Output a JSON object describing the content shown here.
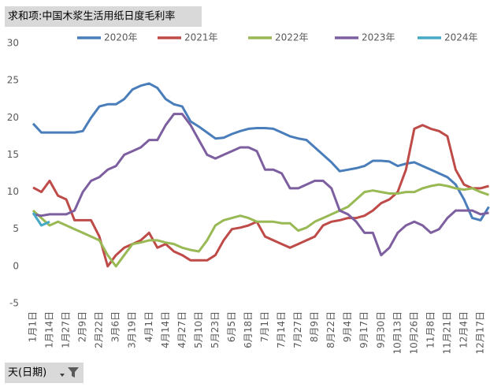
{
  "chart_data": {
    "type": "line",
    "title": "求和项:中国木浆生活用纸日度毛利率",
    "x_axis_button": "天(日期)",
    "legend": "top",
    "grid": false,
    "categories": [
      "1月1日",
      null,
      "1月14日",
      null,
      "1月27日",
      null,
      "2月9日",
      null,
      "2月22日",
      null,
      "3月6日",
      null,
      "3月19日",
      null,
      "4月1日",
      null,
      "4月14日",
      null,
      "4月27日",
      null,
      "5月10日",
      null,
      "5月23日",
      null,
      "6月5日",
      null,
      "6月18日",
      null,
      "7月1日",
      null,
      "7月14日",
      null,
      "7月27日",
      null,
      "8月9日",
      null,
      "8月22日",
      null,
      "9月4日",
      null,
      "9月17日",
      null,
      "9月30日",
      null,
      "10月13日",
      null,
      "10月26日",
      null,
      "11月8日",
      null,
      "11月21日",
      null,
      "12月4日",
      null,
      "12月17日",
      null
    ],
    "ylim": [
      -5,
      30
    ],
    "yticks": [
      -5,
      0,
      5,
      10,
      15,
      20,
      25,
      30
    ],
    "series": [
      {
        "name": "2020年",
        "color": "#4a7ebb",
        "values": [
          19.2,
          18.0,
          18,
          18,
          18,
          18,
          18.2,
          20,
          21.5,
          21.8,
          21.8,
          22.5,
          23.8,
          24.3,
          24.6,
          24,
          22.5,
          21.8,
          21.5,
          19.5,
          18.8,
          18,
          17.2,
          17.3,
          17.8,
          18.2,
          18.5,
          18.6,
          18.6,
          18.5,
          18,
          17.5,
          17.2,
          17,
          16,
          15,
          14,
          12.8,
          13,
          13.2,
          13.5,
          14.2,
          14.2,
          14.1,
          13.5,
          13.8,
          14,
          13.5,
          13,
          12.5,
          12,
          11,
          9,
          6.5,
          6.2,
          8
        ]
      },
      {
        "name": "2021年",
        "color": "#be4b48",
        "values": [
          10.6,
          10,
          11.5,
          9.5,
          9,
          6.2,
          6.2,
          6.2,
          4,
          0,
          1.5,
          2.5,
          3,
          3.5,
          4.5,
          2.5,
          3,
          2,
          1.5,
          0.8,
          0.8,
          0.8,
          1.5,
          3.5,
          5,
          5.2,
          5.5,
          6,
          4,
          3.5,
          3,
          2.5,
          3,
          3.5,
          4,
          5.5,
          6,
          6.2,
          6.5,
          6.5,
          6.8,
          7.5,
          8.5,
          9,
          10,
          13,
          18.5,
          19,
          18.5,
          18.2,
          17.5,
          13,
          11,
          10.5,
          10.5,
          10.8
        ]
      },
      {
        "name": "2022年",
        "color": "#98b954",
        "values": [
          7.5,
          6.5,
          5.5,
          6,
          5.5,
          5,
          4.5,
          4,
          3.5,
          1.5,
          0,
          1.5,
          3,
          3.2,
          3.5,
          3.5,
          3.2,
          3,
          2.5,
          2.2,
          2,
          3.5,
          5.5,
          6.2,
          6.5,
          6.8,
          6.5,
          6,
          6,
          6,
          5.8,
          5.8,
          4.8,
          5.2,
          6,
          6.5,
          7,
          7.5,
          8,
          9,
          10,
          10.2,
          10,
          9.8,
          9.8,
          10,
          10,
          10.5,
          10.8,
          11,
          10.8,
          10.5,
          10.3,
          10.5,
          10,
          9.6
        ]
      },
      {
        "name": "2023年",
        "color": "#7d5fa0",
        "values": [
          7,
          6.8,
          7,
          7,
          7,
          7.5,
          10,
          11.5,
          12,
          13,
          13.5,
          15,
          15.5,
          16,
          17,
          17,
          19,
          20.5,
          20.5,
          19,
          17,
          15,
          14.5,
          15,
          15.5,
          16,
          16,
          15.5,
          13,
          13,
          12.5,
          10.5,
          10.5,
          11,
          11.5,
          11.5,
          10.5,
          7.5,
          7,
          6,
          4.5,
          4.5,
          1.5,
          2.5,
          4.5,
          5.5,
          6,
          5.5,
          4.5,
          5,
          6.5,
          7.5,
          7.5,
          7.5,
          7,
          7.2
        ]
      },
      {
        "name": "2024年",
        "color": "#46aac5",
        "values": [
          7.2,
          5.5,
          6,
          null,
          null,
          null,
          null,
          null,
          null,
          null,
          null,
          null,
          null,
          null,
          null,
          null,
          null,
          null,
          null,
          null,
          null,
          null,
          null,
          null,
          null,
          null,
          null,
          null,
          null,
          null,
          null,
          null,
          null,
          null,
          null,
          null,
          null,
          null,
          null,
          null,
          null,
          null,
          null,
          null,
          null,
          null,
          null,
          null,
          null,
          null,
          null,
          null,
          null,
          null,
          null,
          null
        ]
      }
    ]
  }
}
